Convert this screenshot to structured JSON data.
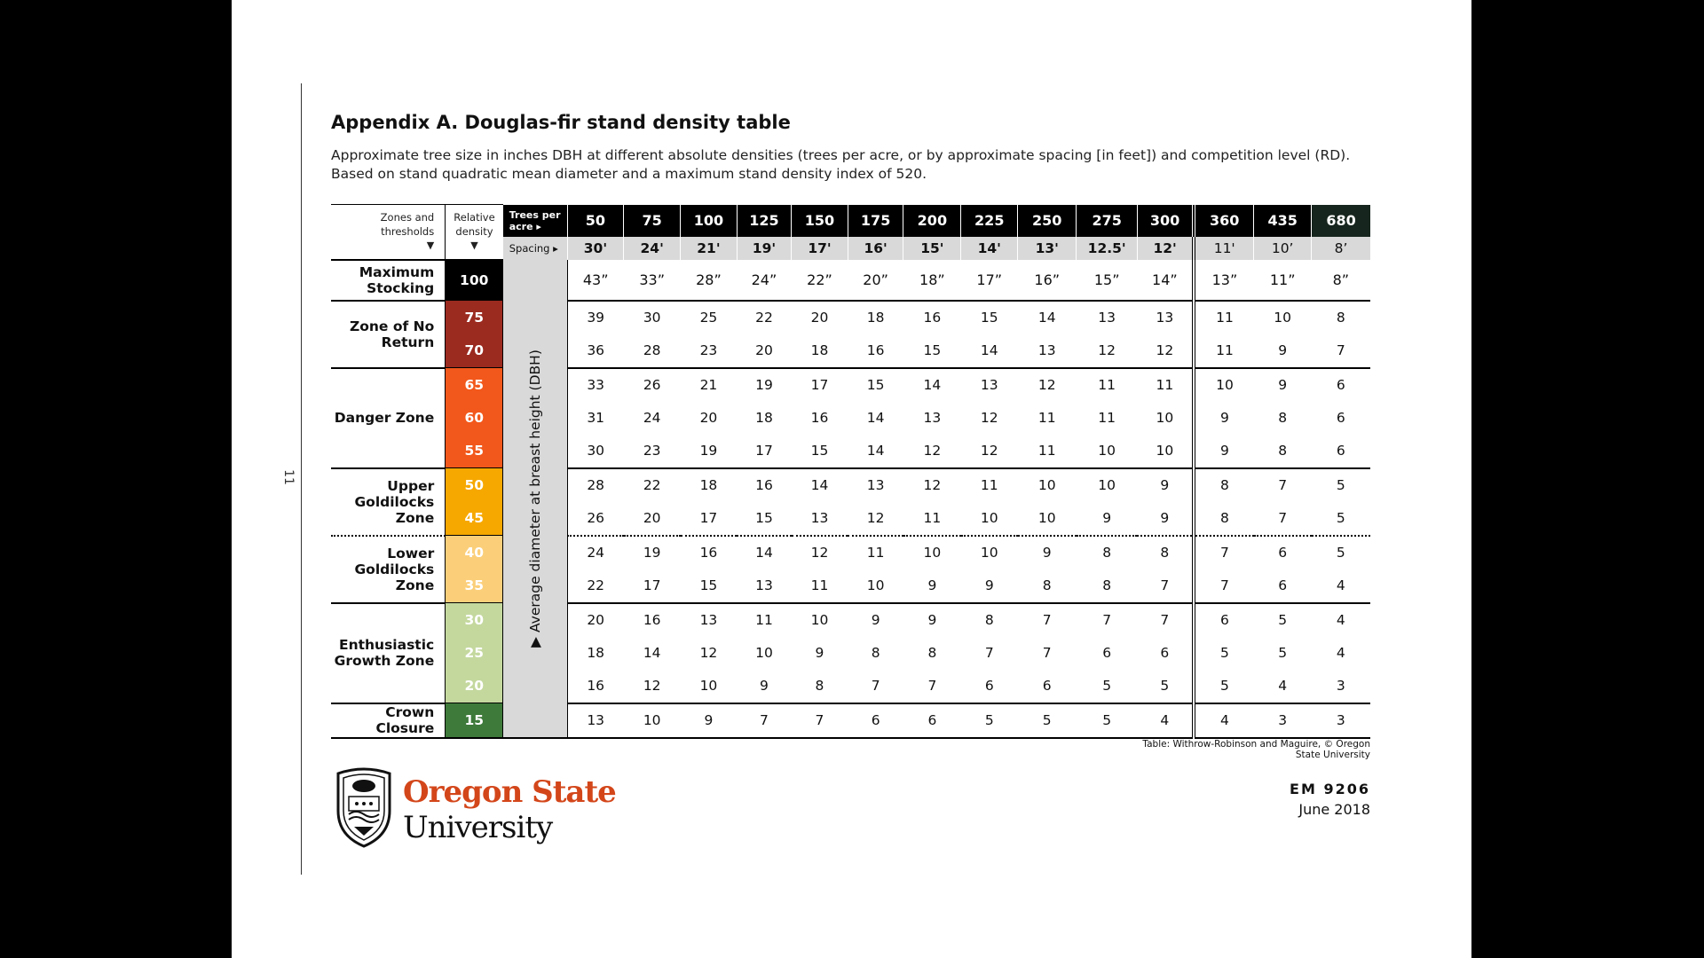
{
  "page_number": "11",
  "title": "Appendix A. Douglas-fir stand density table",
  "subtitle": "Approximate tree size in inches DBH at different absolute densities (trees per acre, or by approximate spacing [in feet]) and competition level (RD). Based on stand quadratic mean diameter and a maximum stand density index of 520.",
  "table": {
    "zones_header": "Zones and thresholds",
    "rd_header": "Relative density",
    "tpa_label": "Trees per acre",
    "spacing_label": "Spacing",
    "axis_label": "Average diameter at breast height (DBH)",
    "trees_per_acre": [
      "50",
      "75",
      "100",
      "125",
      "150",
      "175",
      "200",
      "225",
      "250",
      "275",
      "300",
      "360",
      "435",
      "680"
    ],
    "spacing": [
      "30'",
      "24'",
      "21'",
      "19'",
      "17'",
      "16'",
      "15'",
      "14'",
      "13'",
      "12.5'",
      "12'",
      "11'",
      "10’",
      "8’"
    ],
    "zones": [
      {
        "label": "Maximum Stocking",
        "rows": [
          {
            "rd": "100",
            "color": "#000000",
            "values": [
              "43”",
              "33”",
              "28”",
              "24”",
              "22”",
              "20”",
              "18”",
              "17”",
              "16”",
              "15”",
              "14”",
              "13”",
              "11”",
              "8”"
            ]
          }
        ]
      },
      {
        "label": "Zone of No Return",
        "rows": [
          {
            "rd": "75",
            "color": "#9b2a1f",
            "values": [
              "39",
              "30",
              "25",
              "22",
              "20",
              "18",
              "16",
              "15",
              "14",
              "13",
              "13",
              "11",
              "10",
              "8"
            ]
          },
          {
            "rd": "70",
            "color": "#9b2a1f",
            "values": [
              "36",
              "28",
              "23",
              "20",
              "18",
              "16",
              "15",
              "14",
              "13",
              "12",
              "12",
              "11",
              "9",
              "7"
            ]
          }
        ]
      },
      {
        "label": "Danger Zone",
        "rows": [
          {
            "rd": "65",
            "color": "#f2581b",
            "values": [
              "33",
              "26",
              "21",
              "19",
              "17",
              "15",
              "14",
              "13",
              "12",
              "11",
              "11",
              "10",
              "9",
              "6"
            ]
          },
          {
            "rd": "60",
            "color": "#f2581b",
            "values": [
              "31",
              "24",
              "20",
              "18",
              "16",
              "14",
              "13",
              "12",
              "11",
              "11",
              "10",
              "9",
              "8",
              "6"
            ]
          },
          {
            "rd": "55",
            "color": "#f2581b",
            "values": [
              "30",
              "23",
              "19",
              "17",
              "15",
              "14",
              "12",
              "12",
              "11",
              "10",
              "10",
              "9",
              "8",
              "6"
            ]
          }
        ]
      },
      {
        "label": "Upper Goldilocks Zone",
        "rows": [
          {
            "rd": "50",
            "color": "#f6a800",
            "values": [
              "28",
              "22",
              "18",
              "16",
              "14",
              "13",
              "12",
              "11",
              "10",
              "10",
              "9",
              "8",
              "7",
              "5"
            ]
          },
          {
            "rd": "45",
            "color": "#f6a800",
            "values": [
              "26",
              "20",
              "17",
              "15",
              "13",
              "12",
              "11",
              "10",
              "10",
              "9",
              "9",
              "8",
              "7",
              "5"
            ]
          }
        ]
      },
      {
        "label": "Lower Goldilocks Zone",
        "rows": [
          {
            "rd": "40",
            "color": "#fbcf7a",
            "values": [
              "24",
              "19",
              "16",
              "14",
              "12",
              "11",
              "10",
              "10",
              "9",
              "8",
              "8",
              "7",
              "6",
              "5"
            ]
          },
          {
            "rd": "35",
            "color": "#fbcf7a",
            "values": [
              "22",
              "17",
              "15",
              "13",
              "11",
              "10",
              "9",
              "9",
              "8",
              "8",
              "7",
              "7",
              "6",
              "4"
            ]
          }
        ]
      },
      {
        "label": "Enthusiastic Growth Zone",
        "rows": [
          {
            "rd": "30",
            "color": "#c4d89e",
            "values": [
              "20",
              "16",
              "13",
              "11",
              "10",
              "9",
              "9",
              "8",
              "7",
              "7",
              "7",
              "6",
              "5",
              "4"
            ]
          },
          {
            "rd": "25",
            "color": "#c4d89e",
            "values": [
              "18",
              "14",
              "12",
              "10",
              "9",
              "8",
              "8",
              "7",
              "7",
              "6",
              "6",
              "5",
              "5",
              "4"
            ]
          },
          {
            "rd": "20",
            "color": "#c4d89e",
            "values": [
              "16",
              "12",
              "10",
              "9",
              "8",
              "7",
              "7",
              "6",
              "6",
              "5",
              "5",
              "5",
              "4",
              "3"
            ]
          }
        ]
      },
      {
        "label": "Crown Closure",
        "rows": [
          {
            "rd": "15",
            "color": "#3e7a3a",
            "values": [
              "13",
              "10",
              "9",
              "7",
              "7",
              "6",
              "6",
              "5",
              "5",
              "5",
              "4",
              "4",
              "3",
              "3"
            ]
          }
        ]
      }
    ]
  },
  "credit": "Table: Withrow-Robinson and Maguire, © Oregon State University",
  "logo": {
    "line1": "Oregon State",
    "line2": "University",
    "icon": "osu-seal-icon"
  },
  "doc_id": "EM 9206",
  "doc_date": "June 2018"
}
